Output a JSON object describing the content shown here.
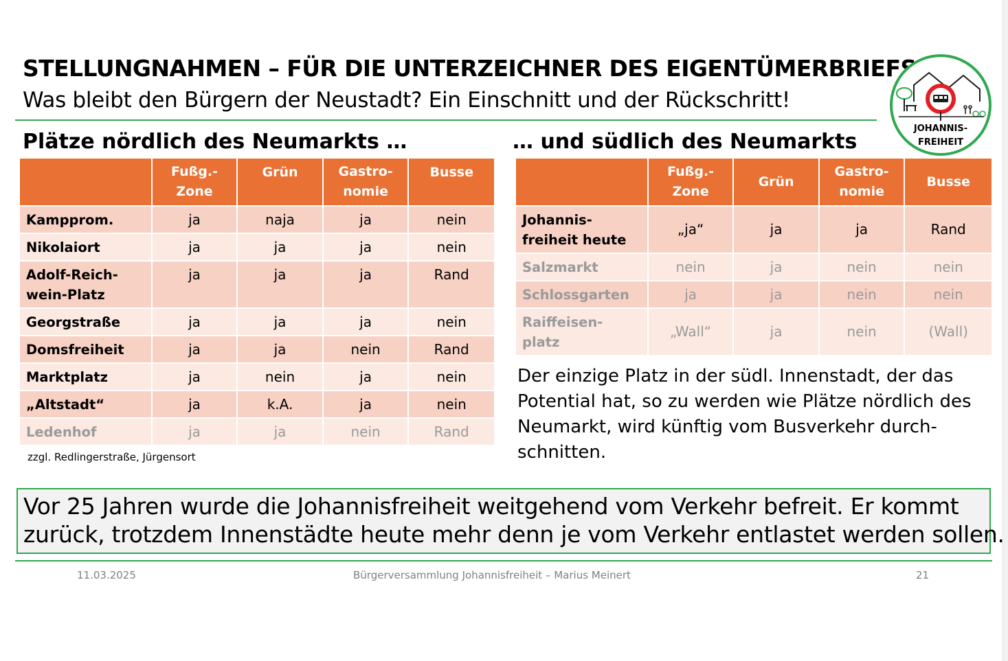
{
  "header": {
    "title": "STELLUNGNAHMEN – FÜR DIE UNTERZEICHNER DES EIGENTÜMERBRIEFS",
    "subtitle": "Was bleibt den Bürgern der Neustadt? Ein Einschnitt und der Rückschritt!"
  },
  "logo": {
    "line1": "JOHANNIS-",
    "line2": "FREIHEIT",
    "icon": "no-bus-sign-icon"
  },
  "north": {
    "heading": "Plätze nördlich des Neumarkts …",
    "columns": [
      "",
      "Fußg.-\nZone",
      "Grün",
      "Gastro-\nnomie",
      "Busse"
    ],
    "rows": [
      {
        "name": "Kampprom.",
        "values": [
          "ja",
          "naja",
          "ja",
          "nein"
        ],
        "dim": false
      },
      {
        "name": "Nikolaiort",
        "values": [
          "ja",
          "ja",
          "ja",
          "nein"
        ],
        "dim": false
      },
      {
        "name": "Adolf-Reich-\nwein-Platz",
        "values": [
          "ja",
          "ja",
          "ja",
          "Rand"
        ],
        "dim": false
      },
      {
        "name": "Georgstraße",
        "values": [
          "ja",
          "ja",
          "ja",
          "nein"
        ],
        "dim": false
      },
      {
        "name": "Domsfreiheit",
        "values": [
          "ja",
          "ja",
          "nein",
          "Rand"
        ],
        "dim": false
      },
      {
        "name": "Marktplatz",
        "values": [
          "ja",
          "nein",
          "ja",
          "nein"
        ],
        "dim": false
      },
      {
        "name": "„Altstadt“",
        "values": [
          "ja",
          "k.A.",
          "ja",
          "nein"
        ],
        "dim": false
      },
      {
        "name": "Ledenhof",
        "values": [
          "ja",
          "ja",
          "nein",
          "Rand"
        ],
        "dim": true
      }
    ],
    "note": "zzgl. Redlingerstraße, Jürgensort"
  },
  "south": {
    "heading": "… und südlich des Neumarkts",
    "columns": [
      "",
      "Fußg.-\nZone",
      "Grün",
      "Gastro-\nnomie",
      "Busse"
    ],
    "rows": [
      {
        "name": "Johannis-\nfreiheit heute",
        "values": [
          "„ja“",
          "ja",
          "ja",
          "Rand"
        ],
        "dim": false
      },
      {
        "name": "Salzmarkt",
        "values": [
          "nein",
          "ja",
          "nein",
          "nein"
        ],
        "dim": true
      },
      {
        "name": "Schlossgarten",
        "values": [
          "ja",
          "ja",
          "nein",
          "nein"
        ],
        "dim": true
      },
      {
        "name": "Raiffeisen-\nplatz",
        "values": [
          "„Wall“",
          "ja",
          "nein",
          "(Wall)"
        ],
        "dim": true
      }
    ],
    "paragraph": "Der einzige Platz in der südl. Innenstadt, der das Potential hat, so zu werden wie Plätze nördlich des Neumarkt, wird künftig vom Busverkehr durch-schnitten."
  },
  "callout": {
    "line1": "Vor 25 Jahren wurde die Johannisfreiheit weitgehend vom Verkehr befreit. Er kommt",
    "line2": "zurück, trotzdem Innenstädte heute mehr denn je vom Verkehr entlastet werden sollen."
  },
  "footer": {
    "date": "11.03.2025",
    "center": "Bürgerversammlung Johannisfreiheit – Marius Meinert",
    "page": "21"
  },
  "colors": {
    "accent_green": "#2fa84f",
    "table_header": "#e97133",
    "row_odd": "#f7d1c4",
    "row_even": "#fbe9e2",
    "no_sign_red": "#e31e24"
  }
}
